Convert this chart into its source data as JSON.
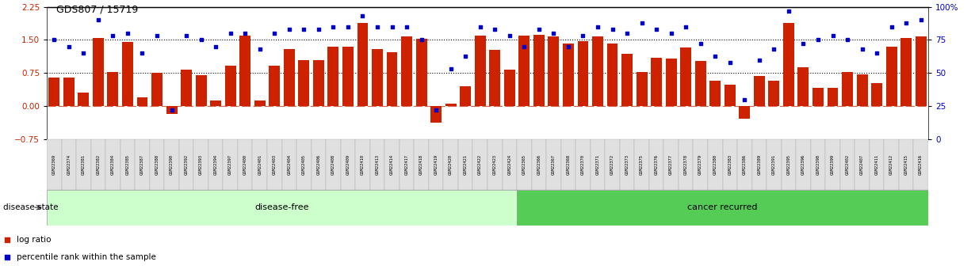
{
  "title": "GDS807 / 15719",
  "samples": [
    "GSM22369",
    "GSM22374",
    "GSM22381",
    "GSM22382",
    "GSM22384",
    "GSM22385",
    "GSM22387",
    "GSM22388",
    "GSM22390",
    "GSM22392",
    "GSM22393",
    "GSM22394",
    "GSM22397",
    "GSM22400",
    "GSM22401",
    "GSM22403",
    "GSM22404",
    "GSM22405",
    "GSM22406",
    "GSM22408",
    "GSM22409",
    "GSM22410",
    "GSM22413",
    "GSM22414",
    "GSM22417",
    "GSM22418",
    "GSM22419",
    "GSM22420",
    "GSM22421",
    "GSM22422",
    "GSM22423",
    "GSM22424",
    "GSM22365",
    "GSM22366",
    "GSM22367",
    "GSM22368",
    "GSM22370",
    "GSM22371",
    "GSM22372",
    "GSM22373",
    "GSM22375",
    "GSM22376",
    "GSM22377",
    "GSM22378",
    "GSM22379",
    "GSM22380",
    "GSM22383",
    "GSM22386",
    "GSM22389",
    "GSM22391",
    "GSM22395",
    "GSM22396",
    "GSM22398",
    "GSM22399",
    "GSM22402",
    "GSM22407",
    "GSM22411",
    "GSM22412",
    "GSM22415",
    "GSM22416"
  ],
  "log_ratio": [
    0.65,
    0.65,
    0.3,
    1.55,
    0.78,
    1.45,
    0.2,
    0.75,
    -0.18,
    0.82,
    0.7,
    0.12,
    0.92,
    1.6,
    0.12,
    0.92,
    1.3,
    1.05,
    1.05,
    1.35,
    1.35,
    1.88,
    1.3,
    1.22,
    1.58,
    1.52,
    -0.38,
    0.06,
    0.45,
    1.6,
    1.28,
    0.82,
    1.6,
    1.62,
    1.58,
    1.42,
    1.48,
    1.58,
    1.42,
    1.18,
    0.78,
    1.1,
    1.08,
    1.32,
    1.02,
    0.58,
    0.48,
    -0.28,
    0.68,
    0.58,
    1.88,
    0.88,
    0.42,
    0.42,
    0.78,
    0.72,
    0.52,
    1.35,
    1.55,
    1.58
  ],
  "percentile": [
    75,
    70,
    65,
    90,
    78,
    80,
    65,
    78,
    22,
    78,
    75,
    70,
    80,
    80,
    68,
    80,
    83,
    83,
    83,
    85,
    85,
    93,
    85,
    85,
    85,
    75,
    22,
    53,
    63,
    85,
    83,
    78,
    70,
    83,
    80,
    70,
    78,
    85,
    83,
    80,
    88,
    83,
    80,
    85,
    72,
    63,
    58,
    30,
    60,
    68,
    97,
    72,
    75,
    78,
    75,
    68,
    65,
    85,
    88,
    90
  ],
  "disease_free_count": 32,
  "bar_color": "#cc2200",
  "dot_color": "#0000cc",
  "ylim_left": [
    -0.75,
    2.25
  ],
  "ylim_right": [
    0,
    100
  ],
  "yticks_left": [
    -0.75,
    0,
    0.75,
    1.5,
    2.25
  ],
  "yticks_right": [
    0,
    25,
    50,
    75,
    100
  ],
  "hline_y": [
    0.75,
    1.5
  ],
  "zero_line_y": 0,
  "background_color": "#ffffff",
  "disease_free_color": "#ccffcc",
  "cancer_recurred_color": "#55cc55",
  "label_bg_color": "#dddddd"
}
